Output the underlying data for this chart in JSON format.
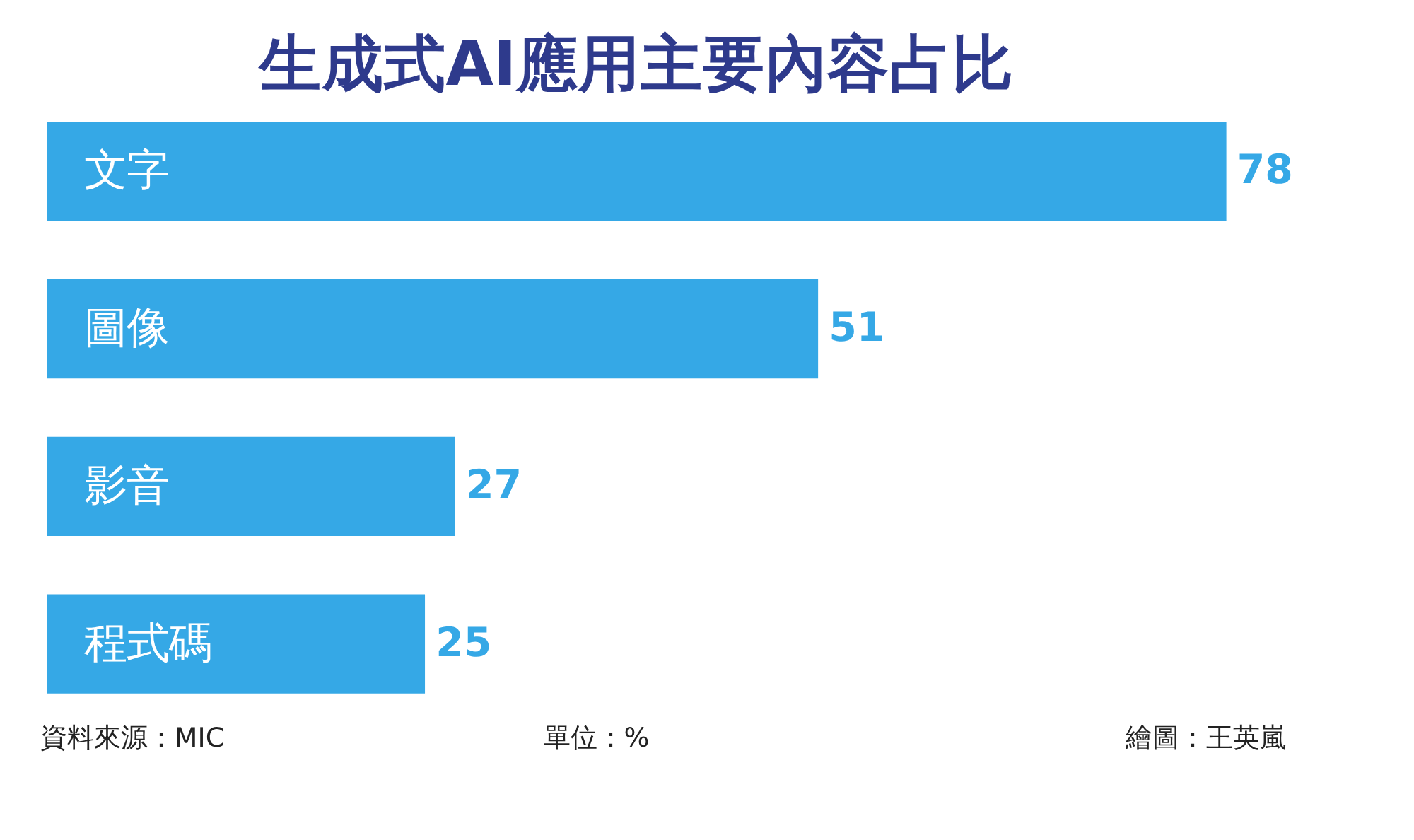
{
  "chart_data": {
    "type": "bar",
    "orientation": "horizontal",
    "title": "生成式AI應用主要內容占比",
    "categories": [
      "文字",
      "圖像",
      "影音",
      "程式碼"
    ],
    "values": [
      78,
      51,
      27,
      25
    ],
    "color": "#35a8e6",
    "data_labels": true,
    "annotations": [
      "資料來源：MIC",
      "單位：%",
      "繪圖：王英嵐"
    ]
  }
}
